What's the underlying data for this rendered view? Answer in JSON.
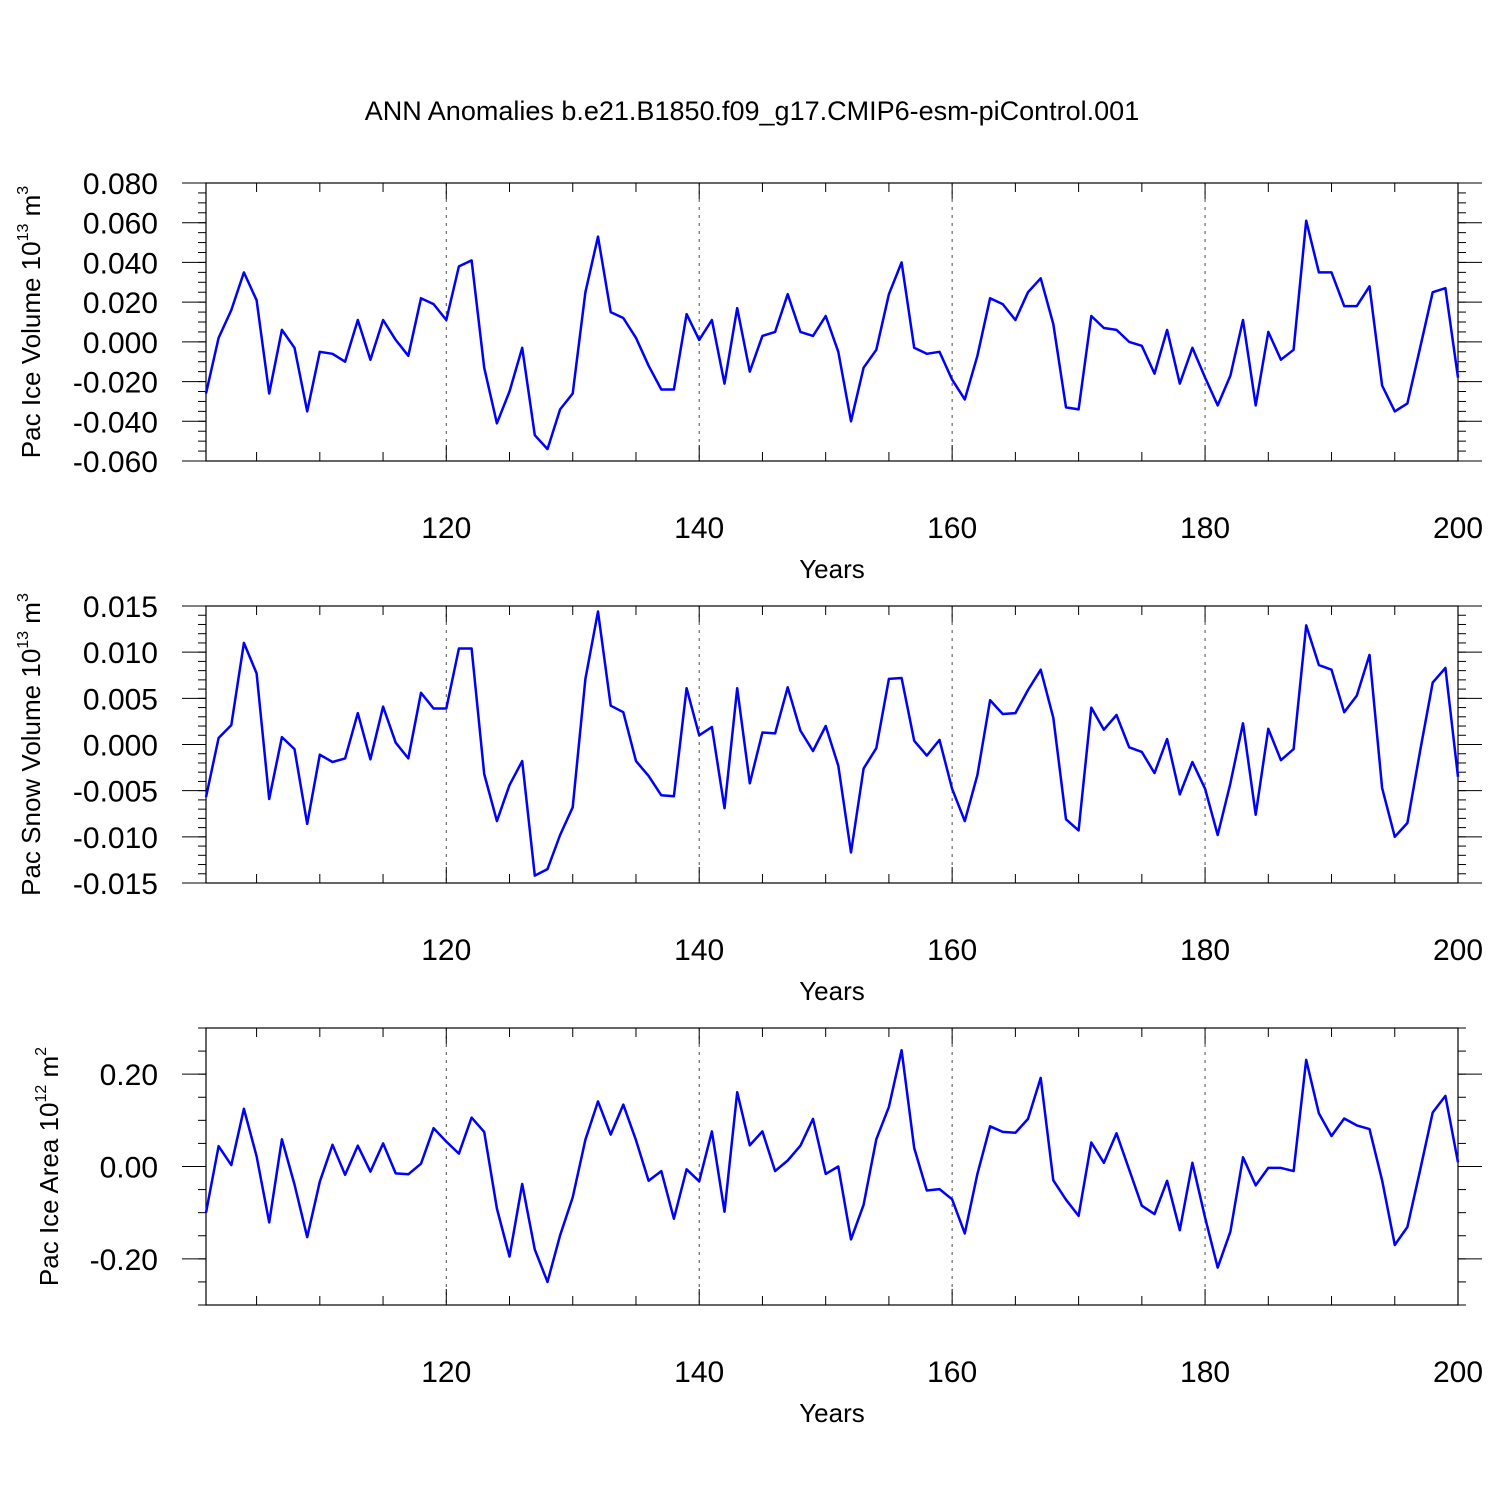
{
  "title": "ANN Anomalies b.e21.B1850.f09_g17.CMIP6-esm-piControl.001",
  "colors": {
    "series": "#0000ff",
    "axes": "#000000"
  },
  "chart_data": [
    {
      "type": "line",
      "ylabel_main": "Pac Ice Volume 10",
      "ylabel_exp": "13",
      "ylabel_unit": " m",
      "ylabel_unit_exp": "3",
      "xlabel": "Years",
      "xlim": [
        101,
        200
      ],
      "ylim": [
        -0.06,
        0.08
      ],
      "yticks": [
        -0.06,
        -0.04,
        -0.02,
        0.0,
        0.02,
        0.04,
        0.06,
        0.08
      ],
      "ytick_labels": [
        "-0.060",
        "-0.040",
        "-0.020",
        "0.000",
        "0.020",
        "0.040",
        "0.060",
        "0.080"
      ],
      "yminor_step": 0.005,
      "xticks": [
        120,
        140,
        160,
        180,
        200
      ],
      "xtick_labels": [
        "120",
        "140",
        "160",
        "180",
        "200"
      ],
      "grid_x": [
        120,
        140,
        160,
        180
      ],
      "x": [
        101,
        102,
        103,
        104,
        105,
        106,
        107,
        108,
        109,
        110,
        111,
        112,
        113,
        114,
        115,
        116,
        117,
        118,
        119,
        120,
        121,
        122,
        123,
        124,
        125,
        126,
        127,
        128,
        129,
        130,
        131,
        132,
        133,
        134,
        135,
        136,
        137,
        138,
        139,
        140,
        141,
        142,
        143,
        144,
        145,
        146,
        147,
        148,
        149,
        150,
        151,
        152,
        153,
        154,
        155,
        156,
        157,
        158,
        159,
        160,
        161,
        162,
        163,
        164,
        165,
        166,
        167,
        168,
        169,
        170,
        171,
        172,
        173,
        174,
        175,
        176,
        177,
        178,
        179,
        180,
        181,
        182,
        183,
        184,
        185,
        186,
        187,
        188,
        189,
        190,
        191,
        192,
        193,
        194,
        195,
        196,
        197,
        198,
        199,
        200
      ],
      "y": [
        -0.026,
        0.002,
        0.016,
        0.035,
        0.021,
        -0.026,
        0.006,
        -0.003,
        -0.035,
        -0.005,
        -0.006,
        -0.01,
        0.011,
        -0.009,
        0.011,
        0.001,
        -0.007,
        0.022,
        0.019,
        0.011,
        0.038,
        0.041,
        -0.013,
        -0.041,
        -0.025,
        -0.003,
        -0.047,
        -0.054,
        -0.034,
        -0.026,
        0.025,
        0.053,
        0.015,
        0.012,
        0.002,
        -0.012,
        -0.024,
        -0.024,
        0.014,
        0.001,
        0.011,
        -0.021,
        0.017,
        -0.015,
        0.003,
        0.005,
        0.024,
        0.005,
        0.003,
        0.013,
        -0.005,
        -0.04,
        -0.013,
        -0.004,
        0.024,
        0.04,
        -0.003,
        -0.006,
        -0.005,
        -0.019,
        -0.029,
        -0.007,
        0.022,
        0.019,
        0.011,
        0.025,
        0.032,
        0.009,
        -0.033,
        -0.034,
        0.013,
        0.007,
        0.006,
        0.0,
        -0.002,
        -0.016,
        0.006,
        -0.021,
        -0.003,
        -0.018,
        -0.032,
        -0.017,
        0.011,
        -0.032,
        0.005,
        -0.009,
        -0.004,
        0.061,
        0.035,
        0.035,
        0.018,
        0.018,
        0.028,
        -0.022,
        -0.035,
        -0.031,
        -0.003,
        0.025,
        0.027,
        -0.018
      ]
    },
    {
      "type": "line",
      "ylabel_main": "Pac Snow Volume 10",
      "ylabel_exp": "13",
      "ylabel_unit": " m",
      "ylabel_unit_exp": "3",
      "xlabel": "Years",
      "xlim": [
        101,
        200
      ],
      "ylim": [
        -0.015,
        0.015
      ],
      "yticks": [
        -0.015,
        -0.01,
        -0.005,
        0.0,
        0.005,
        0.01,
        0.015
      ],
      "ytick_labels": [
        "-0.015",
        "-0.010",
        "-0.005",
        "0.000",
        "0.005",
        "0.010",
        "0.015"
      ],
      "yminor_step": 0.001,
      "xticks": [
        120,
        140,
        160,
        180,
        200
      ],
      "xtick_labels": [
        "120",
        "140",
        "160",
        "180",
        "200"
      ],
      "grid_x": [
        120,
        140,
        160,
        180
      ],
      "x": [
        101,
        102,
        103,
        104,
        105,
        106,
        107,
        108,
        109,
        110,
        111,
        112,
        113,
        114,
        115,
        116,
        117,
        118,
        119,
        120,
        121,
        122,
        123,
        124,
        125,
        126,
        127,
        128,
        129,
        130,
        131,
        132,
        133,
        134,
        135,
        136,
        137,
        138,
        139,
        140,
        141,
        142,
        143,
        144,
        145,
        146,
        147,
        148,
        149,
        150,
        151,
        152,
        153,
        154,
        155,
        156,
        157,
        158,
        159,
        160,
        161,
        162,
        163,
        164,
        165,
        166,
        167,
        168,
        169,
        170,
        171,
        172,
        173,
        174,
        175,
        176,
        177,
        178,
        179,
        180,
        181,
        182,
        183,
        184,
        185,
        186,
        187,
        188,
        189,
        190,
        191,
        192,
        193,
        194,
        195,
        196,
        197,
        198,
        199,
        200
      ],
      "y": [
        -0.0057,
        0.0007,
        0.0021,
        0.011,
        0.0077,
        -0.0059,
        0.0008,
        -0.0005,
        -0.0086,
        -0.0011,
        -0.0019,
        -0.0015,
        0.0034,
        -0.0016,
        0.0041,
        0.0002,
        -0.0015,
        0.0056,
        0.0039,
        0.0039,
        0.0104,
        0.0104,
        -0.0032,
        -0.0083,
        -0.0044,
        -0.0018,
        -0.0142,
        -0.0135,
        -0.0098,
        -0.0068,
        0.0071,
        0.0144,
        0.0042,
        0.0035,
        -0.0018,
        -0.0034,
        -0.0055,
        -0.0056,
        0.0061,
        0.001,
        0.0019,
        -0.0069,
        0.0061,
        -0.0042,
        0.0013,
        0.0012,
        0.0062,
        0.0015,
        -0.0007,
        0.002,
        -0.0023,
        -0.0117,
        -0.0026,
        -0.0004,
        0.0071,
        0.0072,
        0.0004,
        -0.0012,
        0.0005,
        -0.0048,
        -0.0083,
        -0.0033,
        0.0048,
        0.0033,
        0.0034,
        0.0059,
        0.0081,
        0.0029,
        -0.0081,
        -0.0093,
        0.004,
        0.0016,
        0.0032,
        -0.0003,
        -0.0008,
        -0.0031,
        0.0006,
        -0.0054,
        -0.0019,
        -0.0048,
        -0.0098,
        -0.0042,
        0.0023,
        -0.0076,
        0.0017,
        -0.0017,
        -0.0005,
        0.0129,
        0.0086,
        0.0081,
        0.0035,
        0.0053,
        0.0097,
        -0.0047,
        -0.01,
        -0.0085,
        -0.0007,
        0.0067,
        0.0083,
        -0.0035
      ]
    },
    {
      "type": "line",
      "ylabel_main": "Pac Ice Area 10",
      "ylabel_exp": "12",
      "ylabel_unit": " m",
      "ylabel_unit_exp": "2",
      "xlabel": "Years",
      "xlim": [
        101,
        200
      ],
      "ylim": [
        -0.3,
        0.3
      ],
      "yticks": [
        -0.2,
        0.0,
        0.2
      ],
      "ytick_labels": [
        "-0.20",
        "0.00",
        "0.20"
      ],
      "yminor_step": 0.05,
      "xticks": [
        120,
        140,
        160,
        180,
        200
      ],
      "xtick_labels": [
        "120",
        "140",
        "160",
        "180",
        "200"
      ],
      "grid_x": [
        120,
        140,
        160,
        180
      ],
      "x": [
        101,
        102,
        103,
        104,
        105,
        106,
        107,
        108,
        109,
        110,
        111,
        112,
        113,
        114,
        115,
        116,
        117,
        118,
        119,
        120,
        121,
        122,
        123,
        124,
        125,
        126,
        127,
        128,
        129,
        130,
        131,
        132,
        133,
        134,
        135,
        136,
        137,
        138,
        139,
        140,
        141,
        142,
        143,
        144,
        145,
        146,
        147,
        148,
        149,
        150,
        151,
        152,
        153,
        154,
        155,
        156,
        157,
        158,
        159,
        160,
        161,
        162,
        163,
        164,
        165,
        166,
        167,
        168,
        169,
        170,
        171,
        172,
        173,
        174,
        175,
        176,
        177,
        178,
        179,
        180,
        181,
        182,
        183,
        184,
        185,
        186,
        187,
        188,
        189,
        190,
        191,
        192,
        193,
        194,
        195,
        196,
        197,
        198,
        199,
        200
      ],
      "y": [
        -0.1,
        0.044,
        0.003,
        0.125,
        0.022,
        -0.121,
        0.059,
        -0.039,
        -0.153,
        -0.033,
        0.047,
        -0.018,
        0.045,
        -0.011,
        0.05,
        -0.015,
        -0.017,
        0.006,
        0.083,
        0.054,
        0.028,
        0.106,
        0.075,
        -0.091,
        -0.195,
        -0.038,
        -0.18,
        -0.25,
        -0.149,
        -0.067,
        0.058,
        0.141,
        0.069,
        0.134,
        0.057,
        -0.031,
        -0.01,
        -0.113,
        -0.006,
        -0.032,
        0.076,
        -0.098,
        0.161,
        0.046,
        0.076,
        -0.01,
        0.013,
        0.045,
        0.103,
        -0.016,
        0.0,
        -0.158,
        -0.083,
        0.059,
        0.129,
        0.252,
        0.04,
        -0.052,
        -0.049,
        -0.071,
        -0.145,
        -0.016,
        0.087,
        0.075,
        0.073,
        0.103,
        0.192,
        -0.03,
        -0.072,
        -0.107,
        0.052,
        0.008,
        0.072,
        -0.007,
        -0.085,
        -0.103,
        -0.031,
        -0.138,
        0.008,
        -0.111,
        -0.219,
        -0.141,
        0.02,
        -0.041,
        -0.003,
        -0.003,
        -0.01,
        0.231,
        0.115,
        0.066,
        0.104,
        0.089,
        0.081,
        -0.03,
        -0.17,
        -0.131,
        -0.008,
        0.117,
        0.153,
        0.009
      ]
    }
  ]
}
